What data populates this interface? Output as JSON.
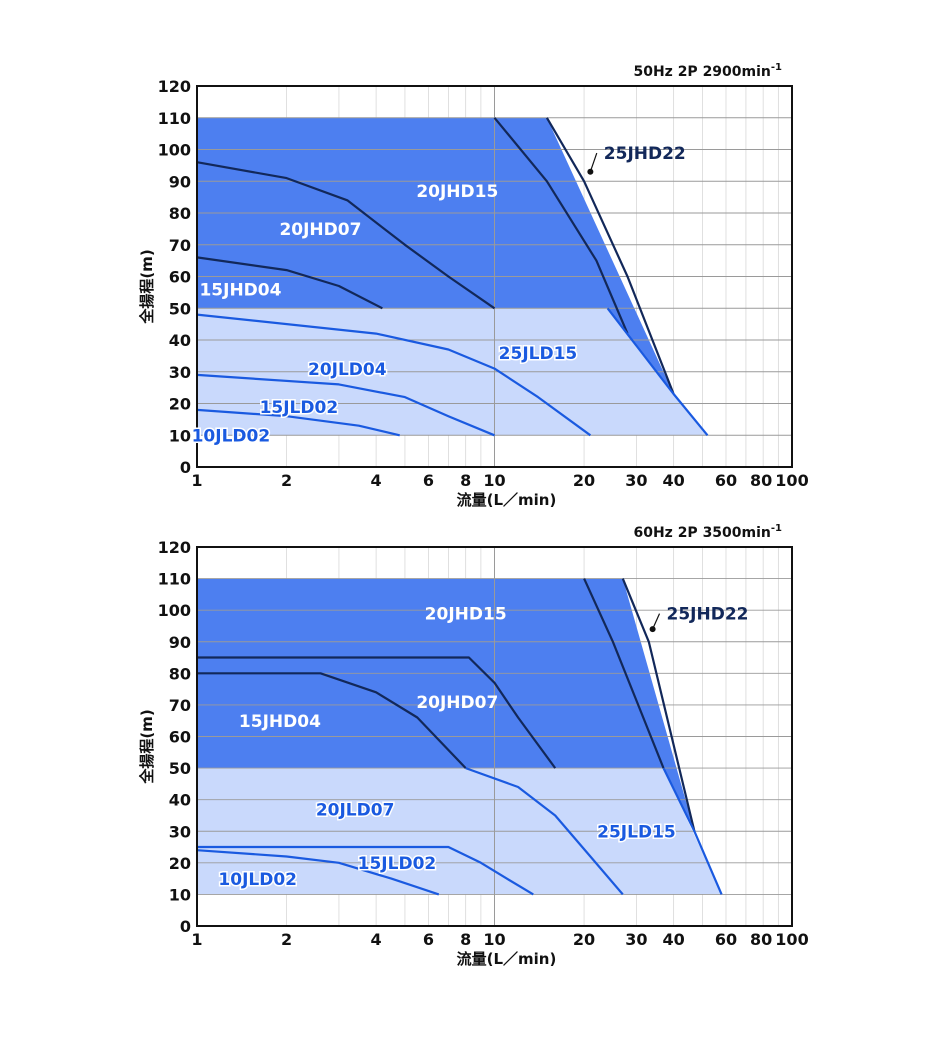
{
  "chart_data": [
    {
      "type": "line",
      "header": "50Hz 2P 2900min",
      "header_sup": "-1",
      "x_scale": "log",
      "xlim": [
        1,
        100
      ],
      "ylim": [
        0,
        120
      ],
      "x_ticks": [
        1,
        2,
        4,
        6,
        8,
        10,
        20,
        30,
        40,
        60,
        80,
        100
      ],
      "x_tick_labels": [
        "1",
        "2",
        "4",
        "6",
        "8",
        "10",
        "20",
        "30",
        "40",
        "60",
        "80",
        "100"
      ],
      "y_ticks": [
        0,
        10,
        20,
        30,
        40,
        50,
        60,
        70,
        80,
        90,
        100,
        110,
        120
      ],
      "y_tick_labels": [
        "0",
        "10",
        "20",
        "30",
        "40",
        "50",
        "60",
        "70",
        "80",
        "90",
        "100",
        "110",
        "120"
      ],
      "xlabel": "流量(L／min)",
      "ylabel": "全揚程(m)",
      "grid": true,
      "regions": [
        {
          "name": "JLD",
          "color": "#c9d9fc",
          "points": [
            [
              1,
              50
            ],
            [
              24,
              50
            ],
            [
              52,
              10
            ],
            [
              1,
              10
            ]
          ]
        },
        {
          "name": "JHD",
          "color": "#4d7ff0",
          "points": [
            [
              1,
              110
            ],
            [
              15,
              110
            ],
            [
              40,
              23
            ],
            [
              24,
              50
            ],
            [
              1,
              50
            ]
          ]
        }
      ],
      "series": [
        {
          "name": "25JHD22",
          "color": "#12285a",
          "points": [
            [
              15,
              110
            ],
            [
              20,
              90
            ],
            [
              28,
              60
            ],
            [
              40,
              23
            ]
          ]
        },
        {
          "name": "20JHD15",
          "color": "#12285a",
          "points": [
            [
              10,
              110
            ],
            [
              15,
              90
            ],
            [
              22,
              65
            ],
            [
              28,
              42
            ]
          ]
        },
        {
          "name": "20JHD07",
          "color": "#12285a",
          "points": [
            [
              1,
              96
            ],
            [
              2,
              91
            ],
            [
              3.2,
              84
            ],
            [
              5,
              70
            ],
            [
              7,
              60
            ],
            [
              10,
              50
            ]
          ]
        },
        {
          "name": "15JHD04",
          "color": "#12285a",
          "points": [
            [
              1,
              66
            ],
            [
              2,
              62
            ],
            [
              3,
              57
            ],
            [
              4.2,
              50
            ]
          ]
        },
        {
          "name": "25JLD15",
          "color": "#1a5ae0",
          "points": [
            [
              24,
              50
            ],
            [
              40,
              23
            ],
            [
              52,
              10
            ]
          ]
        },
        {
          "name": "20JLD04",
          "color": "#1a5ae0",
          "points": [
            [
              1,
              48
            ],
            [
              4,
              42
            ],
            [
              7,
              37
            ],
            [
              10,
              31
            ],
            [
              14,
              22
            ],
            [
              21,
              10
            ]
          ]
        },
        {
          "name": "15JLD02",
          "color": "#1a5ae0",
          "points": [
            [
              1,
              29
            ],
            [
              3,
              26
            ],
            [
              5,
              22
            ],
            [
              7,
              16
            ],
            [
              10,
              10
            ]
          ]
        },
        {
          "name": "10JLD02",
          "color": "#1a5ae0",
          "points": [
            [
              1,
              18
            ],
            [
              2,
              16
            ],
            [
              3.5,
              13
            ],
            [
              4.8,
              10
            ]
          ]
        }
      ],
      "labels": [
        {
          "text": "25JHD22",
          "x": 32,
          "y": 97,
          "color": "#12285a",
          "leader_to": [
            21,
            93
          ]
        },
        {
          "text": "20JHD15",
          "x": 7.5,
          "y": 85,
          "color": "#ffffff"
        },
        {
          "text": "20JHD07",
          "x": 2.6,
          "y": 73,
          "color": "#ffffff"
        },
        {
          "text": "15JHD04",
          "x": 1.4,
          "y": 54,
          "color": "#ffffff"
        },
        {
          "text": "25JLD15",
          "x": 14,
          "y": 34,
          "color": "#1a5ae0"
        },
        {
          "text": "20JLD04",
          "x": 3.2,
          "y": 29,
          "color": "#1a5ae0"
        },
        {
          "text": "15JLD02",
          "x": 2.2,
          "y": 17,
          "color": "#1a5ae0"
        },
        {
          "text": "10JLD02",
          "x": 1.3,
          "y": 8,
          "color": "#1a5ae0"
        }
      ]
    },
    {
      "type": "line",
      "header": "60Hz 2P 3500min",
      "header_sup": "-1",
      "x_scale": "log",
      "xlim": [
        1,
        100
      ],
      "ylim": [
        0,
        120
      ],
      "x_ticks": [
        1,
        2,
        4,
        6,
        8,
        10,
        20,
        30,
        40,
        60,
        80,
        100
      ],
      "x_tick_labels": [
        "1",
        "2",
        "4",
        "6",
        "8",
        "10",
        "20",
        "30",
        "40",
        "60",
        "80",
        "100"
      ],
      "y_ticks": [
        0,
        10,
        20,
        30,
        40,
        50,
        60,
        70,
        80,
        90,
        100,
        110,
        120
      ],
      "y_tick_labels": [
        "0",
        "10",
        "20",
        "30",
        "40",
        "50",
        "60",
        "70",
        "80",
        "90",
        "100",
        "110",
        "120"
      ],
      "xlabel": "流量(L／min)",
      "ylabel": "全揚程(m)",
      "grid": true,
      "regions": [
        {
          "name": "JLD",
          "color": "#c9d9fc",
          "points": [
            [
              1,
              50
            ],
            [
              37,
              50
            ],
            [
              58,
              10
            ],
            [
              1,
              10
            ]
          ]
        },
        {
          "name": "JHD",
          "color": "#4d7ff0",
          "points": [
            [
              1,
              110
            ],
            [
              27,
              110
            ],
            [
              47,
              30
            ],
            [
              37,
              50
            ],
            [
              1,
              50
            ]
          ]
        }
      ],
      "series": [
        {
          "name": "25JHD22",
          "color": "#12285a",
          "points": [
            [
              27,
              110
            ],
            [
              33,
              90
            ],
            [
              47,
              30
            ]
          ]
        },
        {
          "name": "20JHD15",
          "color": "#12285a",
          "points": [
            [
              20,
              110
            ],
            [
              25,
              90
            ],
            [
              37,
              50
            ]
          ]
        },
        {
          "name": "20JHD07",
          "color": "#12285a",
          "points": [
            [
              1,
              85
            ],
            [
              8.2,
              85
            ],
            [
              10,
              77
            ],
            [
              12,
              66
            ],
            [
              16,
              50
            ]
          ]
        },
        {
          "name": "15JHD04",
          "color": "#12285a",
          "points": [
            [
              1,
              80
            ],
            [
              2.6,
              80
            ],
            [
              4,
              74
            ],
            [
              5.5,
              66
            ],
            [
              8,
              50
            ]
          ]
        },
        {
          "name": "25JLD15",
          "color": "#1a5ae0",
          "points": [
            [
              37,
              50
            ],
            [
              47,
              30
            ],
            [
              58,
              10
            ]
          ]
        },
        {
          "name": "20JLD07",
          "color": "#1a5ae0",
          "points": [
            [
              8,
              50
            ],
            [
              12,
              44
            ],
            [
              16,
              35
            ],
            [
              21,
              22
            ],
            [
              27,
              10
            ]
          ]
        },
        {
          "name": "15JLD02",
          "color": "#1a5ae0",
          "points": [
            [
              1,
              25
            ],
            [
              7,
              25
            ],
            [
              9,
              20
            ],
            [
              11,
              15
            ],
            [
              13.5,
              10
            ]
          ]
        },
        {
          "name": "10JLD02",
          "color": "#1a5ae0",
          "points": [
            [
              1,
              24
            ],
            [
              2,
              22
            ],
            [
              3,
              20
            ],
            [
              4.5,
              15
            ],
            [
              6.5,
              10
            ]
          ]
        }
      ],
      "labels": [
        {
          "text": "25JHD22",
          "x": 52,
          "y": 97,
          "color": "#12285a",
          "leader_to": [
            34,
            94
          ]
        },
        {
          "text": "20JHD15",
          "x": 8,
          "y": 97,
          "color": "#ffffff"
        },
        {
          "text": "20JHD07",
          "x": 7.5,
          "y": 69,
          "color": "#ffffff"
        },
        {
          "text": "15JHD04",
          "x": 1.9,
          "y": 63,
          "color": "#ffffff"
        },
        {
          "text": "25JLD15",
          "x": 30,
          "y": 28,
          "color": "#1a5ae0"
        },
        {
          "text": "20JLD07",
          "x": 3.4,
          "y": 35,
          "color": "#1a5ae0"
        },
        {
          "text": "15JLD02",
          "x": 4.7,
          "y": 18,
          "color": "#1a5ae0"
        },
        {
          "text": "10JLD02",
          "x": 1.6,
          "y": 13,
          "color": "#1a5ae0"
        }
      ]
    }
  ]
}
